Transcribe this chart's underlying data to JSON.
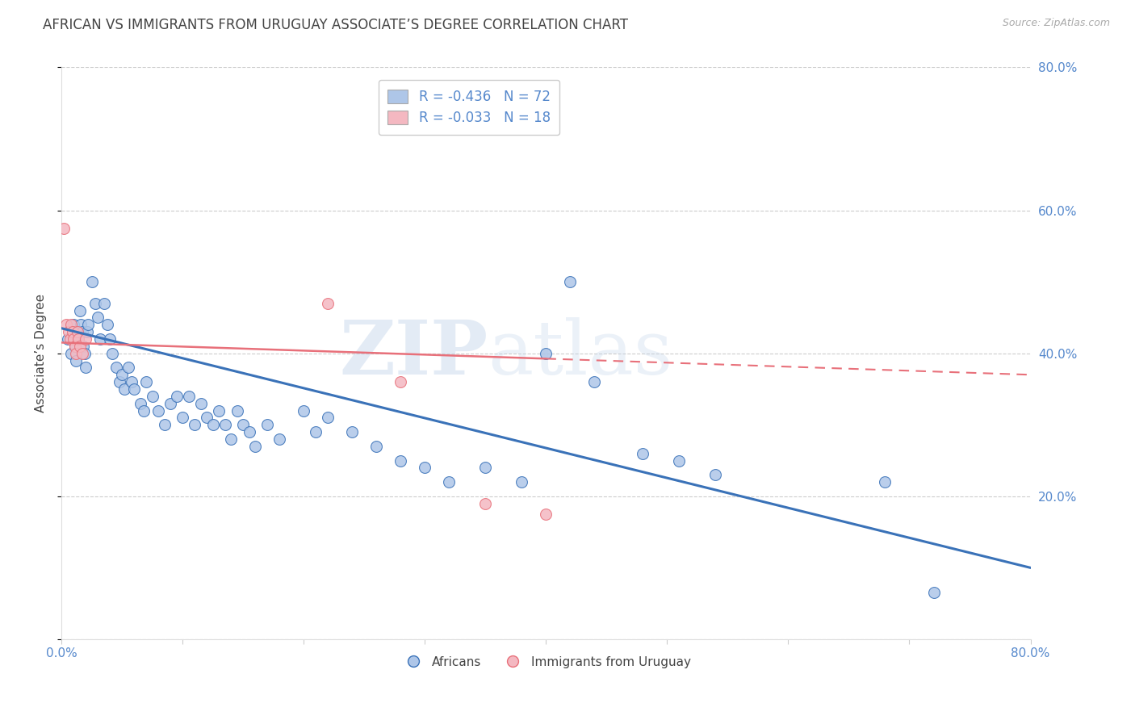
{
  "title": "AFRICAN VS IMMIGRANTS FROM URUGUAY ASSOCIATE’S DEGREE CORRELATION CHART",
  "source": "Source: ZipAtlas.com",
  "ylabel": "Associate’s Degree",
  "watermark_zip": "ZIP",
  "watermark_atlas": "atlas",
  "legend_blue_r": "R = -0.436",
  "legend_blue_n": "N = 72",
  "legend_pink_r": "R = -0.033",
  "legend_pink_n": "N = 18",
  "xlim": [
    0.0,
    0.8
  ],
  "ylim": [
    0.0,
    0.8
  ],
  "blue_color": "#AEC6E8",
  "pink_color": "#F4B8C1",
  "blue_line_color": "#3A72B8",
  "pink_line_color": "#E8707A",
  "grid_color": "#CCCCCC",
  "title_color": "#444444",
  "axis_label_color": "#444444",
  "tick_color": "#5588CC",
  "africans_x": [
    0.005,
    0.008,
    0.009,
    0.01,
    0.011,
    0.012,
    0.013,
    0.014,
    0.015,
    0.016,
    0.017,
    0.018,
    0.019,
    0.02,
    0.021,
    0.022,
    0.025,
    0.028,
    0.03,
    0.032,
    0.035,
    0.038,
    0.04,
    0.042,
    0.045,
    0.048,
    0.05,
    0.052,
    0.055,
    0.058,
    0.06,
    0.065,
    0.068,
    0.07,
    0.075,
    0.08,
    0.085,
    0.09,
    0.095,
    0.1,
    0.105,
    0.11,
    0.115,
    0.12,
    0.125,
    0.13,
    0.135,
    0.14,
    0.145,
    0.15,
    0.155,
    0.16,
    0.17,
    0.18,
    0.2,
    0.21,
    0.22,
    0.24,
    0.26,
    0.28,
    0.3,
    0.32,
    0.35,
    0.38,
    0.4,
    0.42,
    0.44,
    0.48,
    0.51,
    0.54,
    0.68,
    0.72
  ],
  "africans_y": [
    0.42,
    0.4,
    0.43,
    0.44,
    0.41,
    0.39,
    0.43,
    0.42,
    0.46,
    0.44,
    0.43,
    0.41,
    0.4,
    0.38,
    0.43,
    0.44,
    0.5,
    0.47,
    0.45,
    0.42,
    0.47,
    0.44,
    0.42,
    0.4,
    0.38,
    0.36,
    0.37,
    0.35,
    0.38,
    0.36,
    0.35,
    0.33,
    0.32,
    0.36,
    0.34,
    0.32,
    0.3,
    0.33,
    0.34,
    0.31,
    0.34,
    0.3,
    0.33,
    0.31,
    0.3,
    0.32,
    0.3,
    0.28,
    0.32,
    0.3,
    0.29,
    0.27,
    0.3,
    0.28,
    0.32,
    0.29,
    0.31,
    0.29,
    0.27,
    0.25,
    0.24,
    0.22,
    0.24,
    0.22,
    0.4,
    0.5,
    0.36,
    0.26,
    0.25,
    0.23,
    0.22,
    0.065
  ],
  "uruguay_x": [
    0.002,
    0.004,
    0.006,
    0.007,
    0.008,
    0.009,
    0.01,
    0.011,
    0.012,
    0.013,
    0.014,
    0.015,
    0.017,
    0.02,
    0.22,
    0.28,
    0.35,
    0.4
  ],
  "uruguay_y": [
    0.575,
    0.44,
    0.43,
    0.42,
    0.44,
    0.43,
    0.42,
    0.41,
    0.4,
    0.43,
    0.42,
    0.41,
    0.4,
    0.42,
    0.47,
    0.36,
    0.19,
    0.175
  ],
  "blue_line_x": [
    0.0,
    0.8
  ],
  "blue_line_y": [
    0.435,
    0.1
  ],
  "pink_line_x": [
    0.0,
    0.8
  ],
  "pink_line_y": [
    0.415,
    0.37
  ]
}
